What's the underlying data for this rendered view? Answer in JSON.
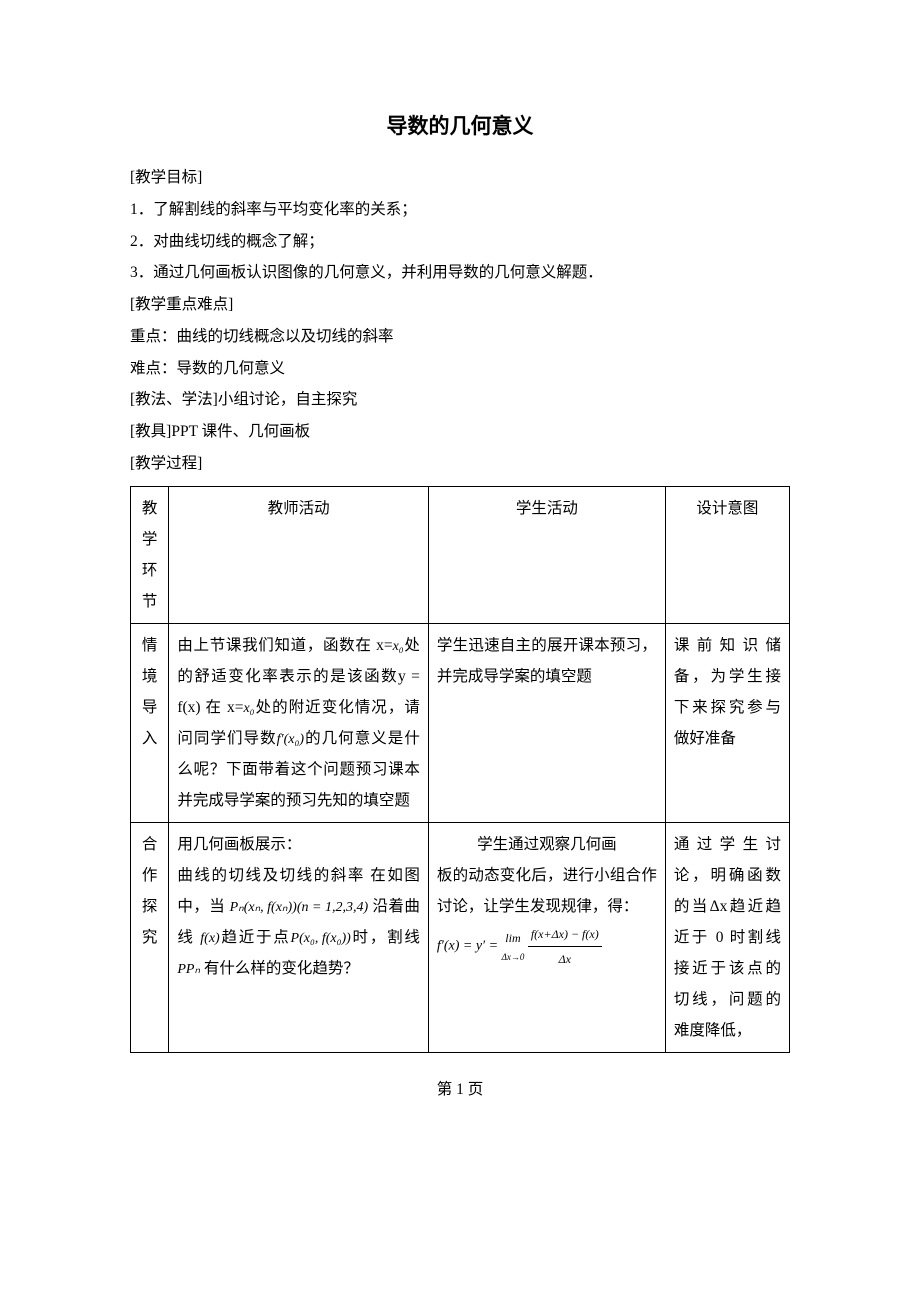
{
  "title": "导数的几何意义",
  "intro": {
    "l1": "[教学目标]",
    "l2": "1．了解割线的斜率与平均变化率的关系；",
    "l3": "2．对曲线切线的概念了解；",
    "l4": "3．通过几何画板认识图像的几何意义，并利用导数的几何意义解题．",
    "l5": "[教学重点难点]",
    "l6": "重点：曲线的切线概念以及切线的斜率",
    "l7": "难点：导数的几何意义",
    "l8": "[教法、学法]小组讨论，自主探究",
    "l9": "[教具]PPT 课件、几何画板",
    "l10": "[教学过程]"
  },
  "headers": {
    "phase_c1": "教",
    "phase_c2": "学",
    "phase_c3": "环",
    "phase_c4": "节",
    "teacher": "教师活动",
    "student": "学生活动",
    "design": "设计意图"
  },
  "row1": {
    "phase_c1": "情",
    "phase_c2": "境",
    "phase_c3": "导",
    "phase_c4": "入",
    "teacher_a": "由上节课我们知道，函数在 x=",
    "teacher_b": "处的舒适变化率表示的是该函数y = f(x) 在 x=",
    "teacher_c": "处的附近变化情况，请问同学们导数",
    "teacher_d": "的几何意义是什么呢？下面带着这个问题预习课本并完成导学案的预习先知的填空题",
    "x0": "x₀",
    "fprime": "f′(x₀)",
    "student": "学生迅速自主的展开课本预习，并完成导学案的填空题",
    "design": "课前知识储备，为学生接下来探究参与做好准备"
  },
  "row2": {
    "phase_c1": "合",
    "phase_c2": "作",
    "phase_c3": "探",
    "phase_c4": "究",
    "teacher_a": "用几何画板展示：",
    "teacher_b": "曲线的切线及切线的斜率 在如图中，当 ",
    "teacher_pn": "Pₙ(xₙ, f(xₙ))(n = 1,2,3,4)",
    "teacher_c": " 沿着曲线 ",
    "teacher_fx": "f(x)",
    "teacher_d": "趋近于点",
    "teacher_p": " P(x₀, f(x₀)) ",
    "teacher_e": "时，割线 ",
    "teacher_ppn": "PPₙ",
    "teacher_f": " 有什么样的变化趋势？",
    "student_a": "学生通过观察几何画",
    "student_b": "板的动态变化后，进行小组合作讨论，让学生发现规律，得：",
    "formula_lhs": "f′(x) = y′ = ",
    "formula_lim": "lim",
    "formula_sub": "Δx→0",
    "formula_num": "f(x+Δx) − f(x)",
    "formula_den": "Δx",
    "design": "通过学生讨论，明确函数的当Δx趋近趋近于 0 时割线接近于该点的切线，问题的难度降低，"
  },
  "footer": "第 1 页",
  "colors": {
    "text": "#000000",
    "bg": "#ffffff",
    "border": "#000000"
  }
}
